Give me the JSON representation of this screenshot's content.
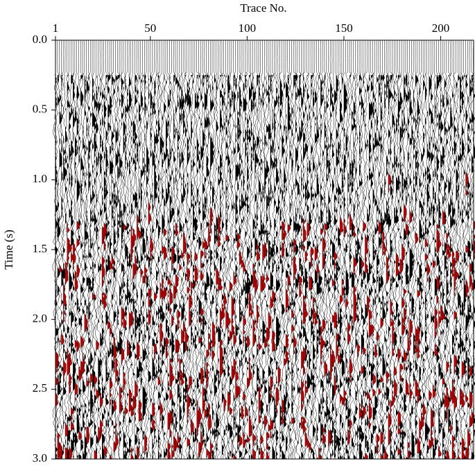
{
  "chart_data": {
    "type": "seismic",
    "x_label": "Trace No.",
    "y_label": "Time (s)",
    "xlim": [
      1,
      217
    ],
    "xticks": [
      1,
      50,
      100,
      150,
      200
    ],
    "ylim": [
      0,
      3
    ],
    "yticks": [
      {
        "value": 0,
        "label": "0.0"
      },
      0.5,
      {
        "value": 1,
        "label": "1.0"
      },
      1.5,
      {
        "value": 2,
        "label": "2.0"
      },
      2.5,
      {
        "value": 3,
        "label": "3.0"
      }
    ]
  }
}
